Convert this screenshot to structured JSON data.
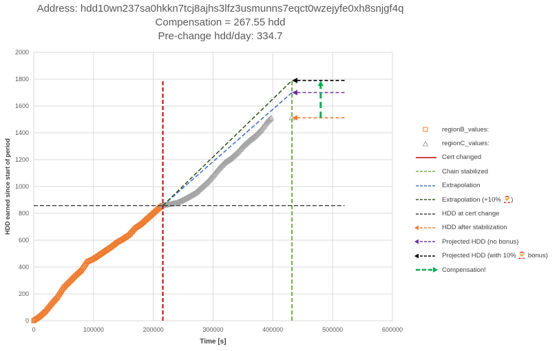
{
  "title": {
    "line1": "Address: hdd10wn237sa0hkkn7tcj8ajhs3lfz3usmunns7eqct0wzejyfe0xh8snjgf4q",
    "line2": "Compensation = 267.55 hdd",
    "line3": "Pre-change hdd/day: 334.7"
  },
  "chart_data": {
    "type": "scatter",
    "xlabel": "Time [s]",
    "ylabel": "HDD earned since start of period",
    "xlim": [
      0,
      600000
    ],
    "ylim": [
      0,
      2000
    ],
    "xticks": [
      "0",
      "100000",
      "200000",
      "300000",
      "400000",
      "500000",
      "600000"
    ],
    "yticks": [
      "0",
      "200",
      "400",
      "600",
      "800",
      "1000",
      "1200",
      "1400",
      "1600",
      "1800",
      "2000"
    ],
    "grid": true,
    "legend_position": "right",
    "series": [
      {
        "name": "regionB_values:",
        "kind": "scatter",
        "marker": "square",
        "color": "#ED7D31",
        "points": [
          [
            0,
            0
          ],
          [
            10000,
            30
          ],
          [
            20000,
            70
          ],
          [
            30000,
            125
          ],
          [
            40000,
            175
          ],
          [
            50000,
            245
          ],
          [
            60000,
            290
          ],
          [
            70000,
            335
          ],
          [
            80000,
            375
          ],
          [
            90000,
            440
          ],
          [
            100000,
            460
          ],
          [
            110000,
            490
          ],
          [
            120000,
            520
          ],
          [
            130000,
            550
          ],
          [
            140000,
            585
          ],
          [
            150000,
            610
          ],
          [
            160000,
            640
          ],
          [
            170000,
            690
          ],
          [
            180000,
            720
          ],
          [
            190000,
            760
          ],
          [
            200000,
            800
          ],
          [
            210000,
            840
          ],
          [
            215000,
            858
          ]
        ]
      },
      {
        "name": "regionC_values:",
        "kind": "scatter",
        "marker": "triangle",
        "color": "#A5A5A5",
        "points": [
          [
            215000,
            858
          ],
          [
            230000,
            870
          ],
          [
            240000,
            880
          ],
          [
            250000,
            900
          ],
          [
            260000,
            925
          ],
          [
            270000,
            950
          ],
          [
            280000,
            990
          ],
          [
            290000,
            1030
          ],
          [
            300000,
            1080
          ],
          [
            310000,
            1135
          ],
          [
            320000,
            1180
          ],
          [
            330000,
            1210
          ],
          [
            340000,
            1250
          ],
          [
            350000,
            1300
          ],
          [
            360000,
            1340
          ],
          [
            370000,
            1375
          ],
          [
            380000,
            1420
          ],
          [
            390000,
            1480
          ],
          [
            397000,
            1510
          ],
          [
            432000,
            1512
          ]
        ]
      },
      {
        "name": "Cert changed",
        "kind": "vline",
        "style": "dashed",
        "color": "#C00000",
        "x": 216000,
        "yrange": [
          0,
          1790
        ]
      },
      {
        "name": "Chain stabilized",
        "kind": "vline",
        "style": "dashed",
        "color": "#70AD47",
        "x": 432000,
        "yrange": [
          0,
          1790
        ]
      },
      {
        "name": "Extrapolation",
        "kind": "line",
        "style": "dashed",
        "color": "#4472C4",
        "points": [
          [
            216000,
            858
          ],
          [
            432000,
            1700
          ]
        ]
      },
      {
        "name": "Extrapolation (+10% 🎅)",
        "kind": "line",
        "style": "dashed",
        "color": "#375623",
        "points": [
          [
            216000,
            858
          ],
          [
            432000,
            1790
          ]
        ]
      },
      {
        "name": "HDD at cert change",
        "kind": "hline",
        "style": "dashed",
        "color": "#404040",
        "y": 858,
        "xrange": [
          0,
          520000
        ]
      },
      {
        "name": "HDD after stabilization",
        "kind": "arrow",
        "style": "dashed",
        "color": "#ED7D31",
        "y": 1512,
        "xrange": [
          432000,
          520000
        ]
      },
      {
        "name": "Projected HDD (no bonus)",
        "kind": "arrow",
        "style": "dashed",
        "color": "#7030A0",
        "y": 1700,
        "xrange": [
          432000,
          520000
        ]
      },
      {
        "name": "Projected HDD (with 10% 🎅 bonus)",
        "kind": "arrow",
        "style": "dashed",
        "color": "#000000",
        "y": 1790,
        "xrange": [
          432000,
          520000
        ]
      },
      {
        "name": "Compensation!",
        "kind": "varrow",
        "style": "dashed",
        "color": "#00B050",
        "x": 480000,
        "yrange": [
          1512,
          1790
        ]
      }
    ]
  }
}
